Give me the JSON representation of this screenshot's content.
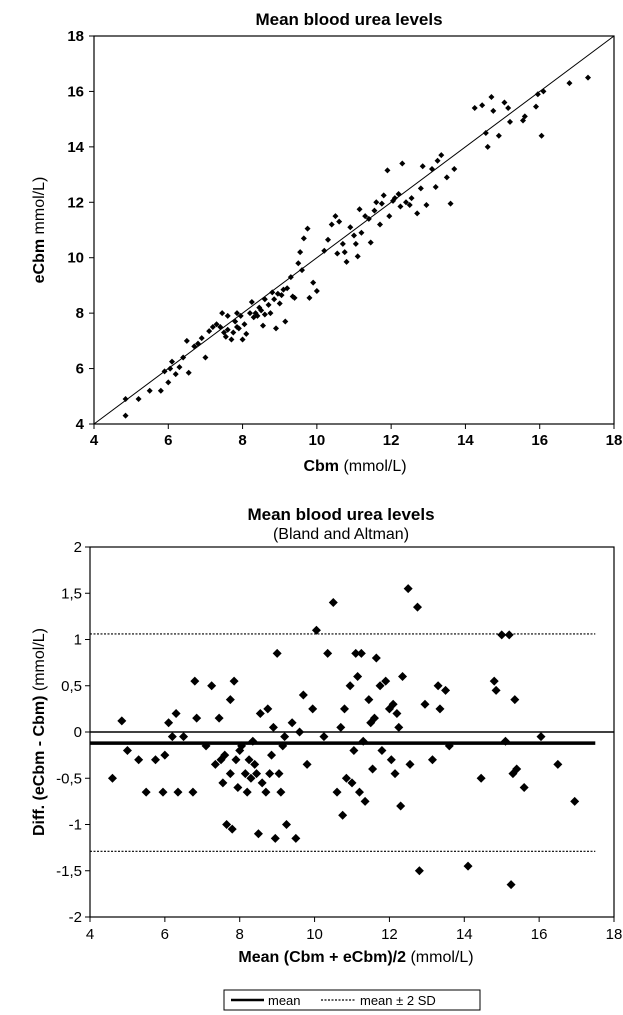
{
  "charts": [
    {
      "title": "Mean blood urea levels",
      "xlabel_bold": "Cbm",
      "xlabel_rest": " (mmol/L)",
      "ylabel_bold": "eCbm",
      "ylabel_rest": " mmol/L)"
    },
    {
      "title": "Mean blood urea levels",
      "subtitle": "(Bland and Altman)",
      "xlabel_bold": "Mean (Cbm + eCbm)/2",
      "xlabel_rest": " (mmol/L)",
      "ylabel_bold": "Diff. (eCbm - Cbm)",
      "ylabel_rest": " (mmol/L)"
    }
  ],
  "legend": {
    "mean": "mean",
    "mean_2sd": "mean ± 2 SD"
  },
  "chart_data": [
    {
      "type": "scatter",
      "title": "Mean blood urea levels",
      "xlabel": "Cbm (mmol/L)",
      "ylabel": "eCbm mmol/L)",
      "xlim": [
        4,
        18
      ],
      "ylim": [
        4,
        18
      ],
      "xticks": [
        4,
        6,
        8,
        10,
        12,
        14,
        16,
        18
      ],
      "yticks": [
        4,
        6,
        8,
        10,
        12,
        14,
        16,
        18
      ],
      "xtick_labels": [
        "4",
        "6",
        "8",
        "10",
        "12",
        "14",
        "16",
        "18"
      ],
      "ytick_labels": [
        "4",
        "6",
        "8",
        "10",
        "12",
        "14",
        "16",
        "18"
      ],
      "reference_line": "identity (y = x)",
      "grid": false,
      "points": [
        [
          4.85,
          4.3
        ],
        [
          4.85,
          4.9
        ],
        [
          5.2,
          4.9
        ],
        [
          5.5,
          5.2
        ],
        [
          5.8,
          5.2
        ],
        [
          5.9,
          5.9
        ],
        [
          6.0,
          5.5
        ],
        [
          6.05,
          6.0
        ],
        [
          6.1,
          6.25
        ],
        [
          6.2,
          5.8
        ],
        [
          6.3,
          6.05
        ],
        [
          6.4,
          6.4
        ],
        [
          6.5,
          7.0
        ],
        [
          6.55,
          5.85
        ],
        [
          6.7,
          6.8
        ],
        [
          6.8,
          6.9
        ],
        [
          6.9,
          7.1
        ],
        [
          7.0,
          6.4
        ],
        [
          7.1,
          7.35
        ],
        [
          7.2,
          7.5
        ],
        [
          7.3,
          7.6
        ],
        [
          7.4,
          7.5
        ],
        [
          7.45,
          8.0
        ],
        [
          7.5,
          7.3
        ],
        [
          7.55,
          7.15
        ],
        [
          7.6,
          7.9
        ],
        [
          7.6,
          7.4
        ],
        [
          7.7,
          7.05
        ],
        [
          7.75,
          7.3
        ],
        [
          7.8,
          7.7
        ],
        [
          7.85,
          7.5
        ],
        [
          7.85,
          8.0
        ],
        [
          7.9,
          7.45
        ],
        [
          7.95,
          7.9
        ],
        [
          8.0,
          7.05
        ],
        [
          8.05,
          7.6
        ],
        [
          8.1,
          7.25
        ],
        [
          8.2,
          8.0
        ],
        [
          8.25,
          8.4
        ],
        [
          8.3,
          7.85
        ],
        [
          8.35,
          8.0
        ],
        [
          8.4,
          7.9
        ],
        [
          8.45,
          8.2
        ],
        [
          8.5,
          8.1
        ],
        [
          8.55,
          7.55
        ],
        [
          8.6,
          8.5
        ],
        [
          8.6,
          7.95
        ],
        [
          8.7,
          8.3
        ],
        [
          8.75,
          8.0
        ],
        [
          8.8,
          8.75
        ],
        [
          8.85,
          8.5
        ],
        [
          8.9,
          7.45
        ],
        [
          8.95,
          8.7
        ],
        [
          9.0,
          8.35
        ],
        [
          9.05,
          8.65
        ],
        [
          9.1,
          8.85
        ],
        [
          9.15,
          7.7
        ],
        [
          9.2,
          8.9
        ],
        [
          9.3,
          9.3
        ],
        [
          9.35,
          8.6
        ],
        [
          9.4,
          8.55
        ],
        [
          9.5,
          9.8
        ],
        [
          9.55,
          10.2
        ],
        [
          9.6,
          9.55
        ],
        [
          9.65,
          10.7
        ],
        [
          9.75,
          11.05
        ],
        [
          9.8,
          8.55
        ],
        [
          9.9,
          9.1
        ],
        [
          10.0,
          8.8
        ],
        [
          10.2,
          10.25
        ],
        [
          10.3,
          10.65
        ],
        [
          10.4,
          11.2
        ],
        [
          10.5,
          11.5
        ],
        [
          10.55,
          10.15
        ],
        [
          10.6,
          11.3
        ],
        [
          10.7,
          10.5
        ],
        [
          10.75,
          10.2
        ],
        [
          10.8,
          9.85
        ],
        [
          10.9,
          11.1
        ],
        [
          11.0,
          10.8
        ],
        [
          11.05,
          10.5
        ],
        [
          11.1,
          10.05
        ],
        [
          11.15,
          11.75
        ],
        [
          11.2,
          10.9
        ],
        [
          11.3,
          11.5
        ],
        [
          11.4,
          11.4
        ],
        [
          11.45,
          10.55
        ],
        [
          11.55,
          11.7
        ],
        [
          11.6,
          12.0
        ],
        [
          11.7,
          11.2
        ],
        [
          11.75,
          11.95
        ],
        [
          11.8,
          12.25
        ],
        [
          11.9,
          13.15
        ],
        [
          11.95,
          11.5
        ],
        [
          12.05,
          12.05
        ],
        [
          12.1,
          12.15
        ],
        [
          12.2,
          12.3
        ],
        [
          12.25,
          11.85
        ],
        [
          12.3,
          13.4
        ],
        [
          12.4,
          12.0
        ],
        [
          12.5,
          11.9
        ],
        [
          12.55,
          12.15
        ],
        [
          12.7,
          11.6
        ],
        [
          12.8,
          12.5
        ],
        [
          12.85,
          13.3
        ],
        [
          12.95,
          11.9
        ],
        [
          13.1,
          13.2
        ],
        [
          13.2,
          12.55
        ],
        [
          13.25,
          13.5
        ],
        [
          13.35,
          13.7
        ],
        [
          13.5,
          12.9
        ],
        [
          13.6,
          11.95
        ],
        [
          13.7,
          13.2
        ],
        [
          14.25,
          15.4
        ],
        [
          14.45,
          15.5
        ],
        [
          14.55,
          14.5
        ],
        [
          14.6,
          14.0
        ],
        [
          14.7,
          15.8
        ],
        [
          14.75,
          15.3
        ],
        [
          14.9,
          14.4
        ],
        [
          15.05,
          15.6
        ],
        [
          15.15,
          15.4
        ],
        [
          15.2,
          14.9
        ],
        [
          15.55,
          14.95
        ],
        [
          15.6,
          15.1
        ],
        [
          15.9,
          15.45
        ],
        [
          15.95,
          15.9
        ],
        [
          16.05,
          14.4
        ],
        [
          16.1,
          16.0
        ],
        [
          16.8,
          16.3
        ],
        [
          17.3,
          16.5
        ]
      ]
    },
    {
      "type": "scatter",
      "title": "Mean blood urea levels",
      "subtitle": "(Bland and Altman)",
      "xlabel": "Mean (Cbm + eCbm)/2 (mmol/L)",
      "ylabel": "Diff. (eCbm - Cbm) (mmol/L)",
      "xlim": [
        4,
        18
      ],
      "ylim": [
        -2,
        2
      ],
      "xticks": [
        4,
        6,
        8,
        10,
        12,
        14,
        16,
        18
      ],
      "yticks": [
        -2,
        -1.5,
        -1,
        -0.5,
        0,
        0.5,
        1,
        1.5,
        2
      ],
      "xtick_labels": [
        "4",
        "6",
        "8",
        "10",
        "12",
        "14",
        "16",
        "18"
      ],
      "ytick_labels": [
        "-2",
        "-1,5",
        "-1",
        "-0,5",
        "0",
        "0,5",
        "1",
        "1,5",
        "2"
      ],
      "hlines": {
        "mean": -0.12,
        "upper_2sd": 1.06,
        "lower_2sd": -1.29,
        "zero": 0
      },
      "legend_position": "bottom-center",
      "grid": false,
      "points": [
        [
          4.6,
          -0.5
        ],
        [
          4.85,
          0.12
        ],
        [
          5.0,
          -0.2
        ],
        [
          5.3,
          -0.3
        ],
        [
          5.5,
          -0.65
        ],
        [
          5.75,
          -0.3
        ],
        [
          5.95,
          -0.65
        ],
        [
          6.0,
          -0.25
        ],
        [
          6.1,
          0.1
        ],
        [
          6.2,
          -0.05
        ],
        [
          6.3,
          0.2
        ],
        [
          6.35,
          -0.65
        ],
        [
          6.5,
          -0.05
        ],
        [
          6.75,
          -0.65
        ],
        [
          6.8,
          0.55
        ],
        [
          6.85,
          0.15
        ],
        [
          7.1,
          -0.15
        ],
        [
          7.25,
          0.5
        ],
        [
          7.35,
          -0.35
        ],
        [
          7.45,
          0.15
        ],
        [
          7.5,
          -0.3
        ],
        [
          7.55,
          -0.55
        ],
        [
          7.6,
          -0.25
        ],
        [
          7.65,
          -1.0
        ],
        [
          7.75,
          -0.45
        ],
        [
          7.75,
          0.35
        ],
        [
          7.8,
          -1.05
        ],
        [
          7.85,
          0.55
        ],
        [
          7.9,
          -0.3
        ],
        [
          7.95,
          -0.6
        ],
        [
          8.0,
          -0.2
        ],
        [
          8.05,
          -0.15
        ],
        [
          8.15,
          -0.45
        ],
        [
          8.2,
          -0.65
        ],
        [
          8.25,
          -0.3
        ],
        [
          8.3,
          -0.5
        ],
        [
          8.35,
          -0.1
        ],
        [
          8.4,
          -0.35
        ],
        [
          8.45,
          -0.45
        ],
        [
          8.5,
          -1.1
        ],
        [
          8.55,
          0.2
        ],
        [
          8.6,
          -0.55
        ],
        [
          8.7,
          -0.65
        ],
        [
          8.75,
          0.25
        ],
        [
          8.8,
          -0.45
        ],
        [
          8.85,
          -0.25
        ],
        [
          8.9,
          0.05
        ],
        [
          8.95,
          -1.15
        ],
        [
          9.0,
          0.85
        ],
        [
          9.05,
          -0.45
        ],
        [
          9.1,
          -0.65
        ],
        [
          9.15,
          -0.15
        ],
        [
          9.2,
          -0.05
        ],
        [
          9.25,
          -1.0
        ],
        [
          9.4,
          0.1
        ],
        [
          9.5,
          -1.15
        ],
        [
          9.6,
          0.0
        ],
        [
          9.7,
          0.4
        ],
        [
          9.8,
          -0.35
        ],
        [
          9.95,
          0.25
        ],
        [
          10.05,
          1.1
        ],
        [
          10.25,
          -0.05
        ],
        [
          10.35,
          0.85
        ],
        [
          10.5,
          1.4
        ],
        [
          10.6,
          -0.65
        ],
        [
          10.7,
          0.05
        ],
        [
          10.75,
          -0.9
        ],
        [
          10.8,
          0.25
        ],
        [
          10.85,
          -0.5
        ],
        [
          10.95,
          0.5
        ],
        [
          11.0,
          -0.55
        ],
        [
          11.05,
          -0.2
        ],
        [
          11.1,
          0.85
        ],
        [
          11.15,
          0.6
        ],
        [
          11.2,
          -0.65
        ],
        [
          11.25,
          0.85
        ],
        [
          11.3,
          -0.1
        ],
        [
          11.35,
          -0.75
        ],
        [
          11.45,
          0.35
        ],
        [
          11.5,
          0.1
        ],
        [
          11.55,
          -0.4
        ],
        [
          11.6,
          0.15
        ],
        [
          11.65,
          0.8
        ],
        [
          11.75,
          0.5
        ],
        [
          11.8,
          -0.2
        ],
        [
          11.9,
          0.55
        ],
        [
          12.0,
          0.25
        ],
        [
          12.05,
          -0.3
        ],
        [
          12.1,
          0.3
        ],
        [
          12.15,
          -0.45
        ],
        [
          12.2,
          0.2
        ],
        [
          12.25,
          0.05
        ],
        [
          12.3,
          -0.8
        ],
        [
          12.35,
          0.6
        ],
        [
          12.5,
          1.55
        ],
        [
          12.55,
          -0.35
        ],
        [
          12.75,
          1.35
        ],
        [
          12.8,
          -1.5
        ],
        [
          12.95,
          0.3
        ],
        [
          13.15,
          -0.3
        ],
        [
          13.3,
          0.5
        ],
        [
          13.35,
          0.25
        ],
        [
          13.5,
          0.45
        ],
        [
          13.6,
          -0.15
        ],
        [
          14.1,
          -1.45
        ],
        [
          14.45,
          -0.5
        ],
        [
          14.8,
          0.55
        ],
        [
          14.85,
          0.45
        ],
        [
          15.0,
          1.05
        ],
        [
          15.1,
          -0.1
        ],
        [
          15.2,
          1.05
        ],
        [
          15.25,
          -1.65
        ],
        [
          15.3,
          -0.45
        ],
        [
          15.35,
          0.35
        ],
        [
          15.4,
          -0.4
        ],
        [
          15.6,
          -0.6
        ],
        [
          16.05,
          -0.05
        ],
        [
          16.5,
          -0.35
        ],
        [
          16.95,
          -0.75
        ]
      ]
    }
  ]
}
